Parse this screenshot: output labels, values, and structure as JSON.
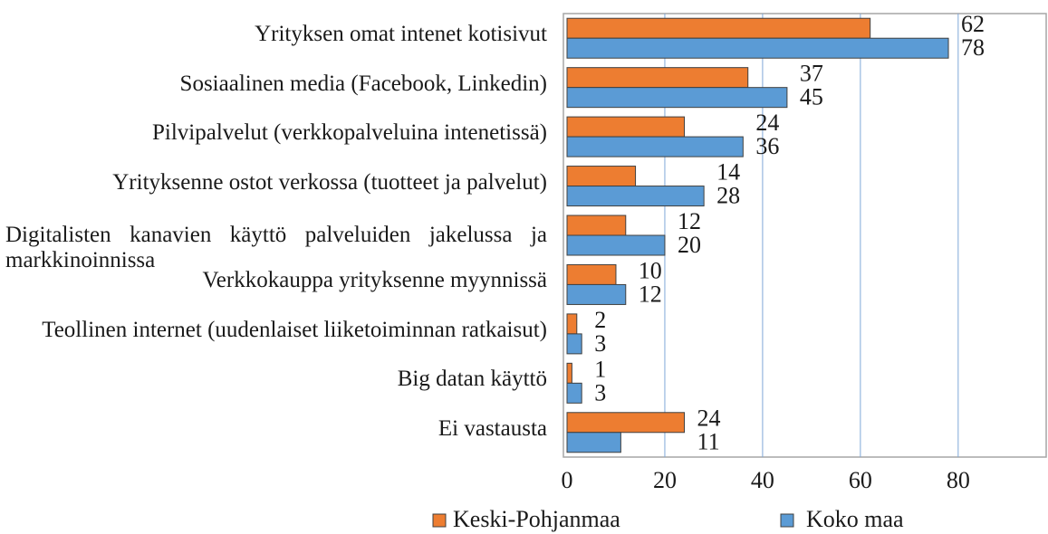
{
  "chart_data": {
    "type": "bar",
    "orientation": "horizontal",
    "categories": [
      "Yrityksen omat intenet kotisivut",
      "Sosiaalinen media (Facebook, Linkedin)",
      "Pilvipalvelut (verkkopalveluina intenetissä)",
      "Yrityksenne ostot verkossa (tuotteet ja palvelut)",
      "Digitalisten kanavien käyttö palveluiden jakelussa ja markkinoinnissa",
      "Verkkokauppa yrityksenne myynnissä",
      "Teollinen internet (uudenlaiset liiketoiminnan ratkaisut)",
      "Big datan käyttö",
      "Ei vastausta"
    ],
    "series": [
      {
        "name": "Keski-Pohjanmaa",
        "color": "#ed7d31",
        "values": [
          62,
          37,
          24,
          14,
          12,
          10,
          2,
          1,
          24
        ]
      },
      {
        "name": "Koko maa",
        "color": "#5b9bd5",
        "values": [
          78,
          45,
          36,
          28,
          20,
          12,
          3,
          3,
          11
        ]
      }
    ],
    "xlim": [
      0,
      98
    ],
    "xticks": [
      0,
      20,
      40,
      60,
      80
    ],
    "grid": true,
    "legend": "bottom"
  }
}
